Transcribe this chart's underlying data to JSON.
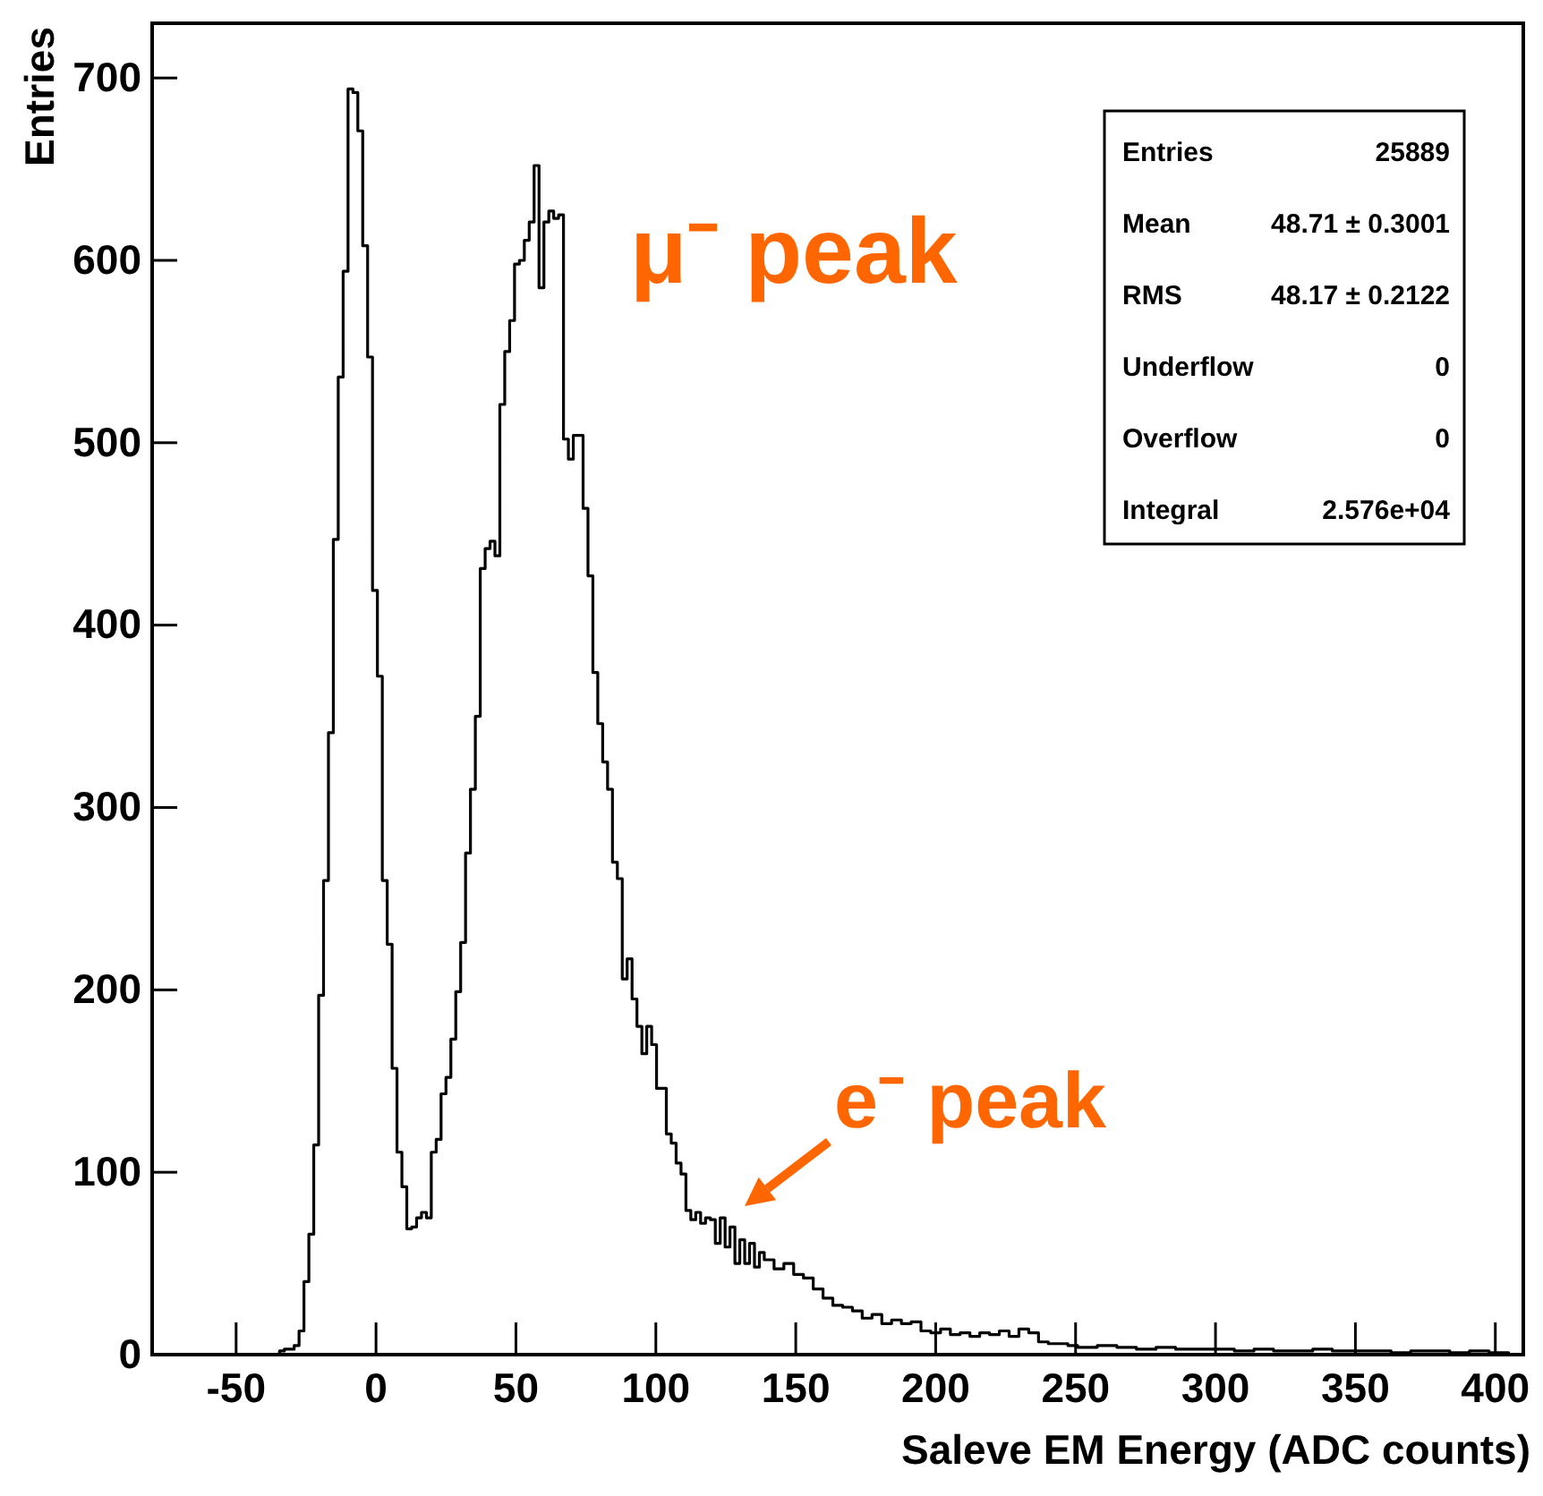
{
  "chart_data": {
    "type": "histogram",
    "xlabel": "Saleve EM Energy (ADC counts)",
    "ylabel": "Entries",
    "bins": [
      -34.5,
      -32.75,
      -31,
      -29.25,
      -27.5,
      -25.75,
      -24,
      -22.25,
      -20.5,
      -18.75,
      -17,
      -15.25,
      -13.5,
      -11.75,
      -10,
      -8.25,
      -6.5,
      -4.75,
      -3,
      -1.25,
      0.5,
      2.25,
      4,
      5.75,
      7.5,
      9.25,
      11,
      12.75,
      14.5,
      16.25,
      18,
      19.75,
      21.5,
      23.25,
      25,
      26.75,
      28.5,
      30.25,
      32,
      33.75,
      35.5,
      37.25,
      39,
      40.75,
      42.5,
      44.25,
      46,
      47.75,
      49.5,
      51.25,
      53,
      54.75,
      56.5,
      58.25,
      60,
      61.75,
      63.5,
      65.25,
      67,
      68.75,
      70.5,
      72.25,
      74,
      75.75,
      77.5,
      79.25,
      81,
      82.75,
      84.5,
      86.25,
      88,
      89.75,
      91.5,
      93.25,
      95,
      96.75,
      98.5,
      100.25,
      102,
      103.75,
      105.5,
      107.25,
      109,
      110.75,
      112.5,
      114.25,
      116,
      117.75,
      119.5,
      121.25,
      123,
      124.75,
      126.5,
      128.25,
      130,
      131.75,
      133.5,
      135.25,
      137,
      138.75,
      142.25,
      145.75,
      149.25,
      152.75,
      156.25,
      159.75,
      163.25,
      166.75,
      170.25,
      173.75,
      177.25,
      180.75,
      184.25,
      187.75,
      191.25,
      194.75,
      198.25,
      201.75,
      205.25,
      208.75,
      212.25,
      215.75,
      219.25,
      222.75,
      226.25,
      229.75,
      233.25,
      236.75,
      240.25,
      243.75,
      247.25,
      250.75,
      257.75,
      264.75,
      271.75,
      278.75,
      285.75,
      292.75,
      299.75,
      306.75,
      313.75,
      320.75,
      327.75,
      334.75,
      341.75,
      348.75,
      355.75,
      362.75,
      369.75,
      376.75,
      383.75,
      390.75,
      397.75,
      404.75
    ],
    "values": [
      2,
      3,
      3,
      5,
      13,
      40,
      66,
      115,
      197,
      260,
      341,
      447,
      536,
      594,
      694,
      692,
      671,
      608,
      547,
      419,
      372,
      260,
      225,
      157,
      111,
      92,
      69,
      70,
      75,
      78,
      75,
      111,
      118,
      143,
      152,
      173,
      199,
      226,
      275,
      310,
      350,
      431,
      442,
      446,
      438,
      521,
      550,
      567,
      598,
      600,
      611,
      621,
      652,
      585,
      621,
      627,
      623,
      625,
      502,
      491,
      504,
      504,
      464,
      427,
      374,
      346,
      325,
      310,
      270,
      261,
      206,
      217,
      195,
      180,
      165,
      180,
      170,
      146,
      146,
      121,
      116,
      105,
      99,
      79,
      74,
      78,
      72,
      75,
      74,
      61,
      75,
      59,
      70,
      50,
      63,
      50,
      61,
      48,
      56,
      52,
      47,
      50,
      44,
      42,
      36,
      31,
      27,
      26,
      24,
      20,
      22,
      17,
      19,
      17,
      18,
      13,
      12,
      14,
      11,
      12,
      10,
      12,
      11,
      13,
      10,
      14,
      12,
      7,
      6,
      6,
      5,
      4,
      5,
      4,
      3,
      4,
      3,
      3,
      3,
      2,
      3,
      2,
      2,
      3,
      2,
      2,
      2,
      1,
      2,
      2,
      1,
      2,
      1
    ],
    "color": "#000000",
    "xlim": [
      -80,
      410
    ],
    "xticks": [
      -50,
      0,
      50,
      100,
      150,
      200,
      250,
      300,
      350,
      400
    ],
    "ylim": [
      0,
      730
    ],
    "yticks": [
      0,
      100,
      200,
      300,
      400,
      500,
      600,
      700
    ],
    "annotations": [
      "Entries 25889",
      "Mean 48.71 ± 0.3001",
      "RMS 48.17 ± 0.2122",
      "Underflow 0",
      "Overflow 0",
      "Integral 2.576e+04",
      "μ⁻ peak",
      "e⁻ peak"
    ]
  }
}
